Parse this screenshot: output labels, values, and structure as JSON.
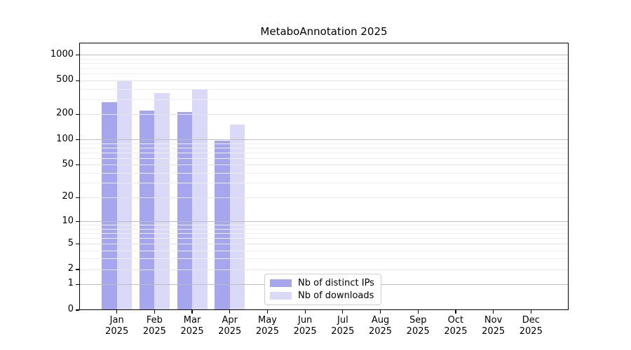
{
  "title": "MetaboAnnotation 2025",
  "chart_data": {
    "type": "bar",
    "title": "MetaboAnnotation 2025",
    "xlabel": "",
    "ylabel": "",
    "y_scale": "log1p",
    "ylim": [
      0,
      1400
    ],
    "grid": true,
    "legend_position": "lower center",
    "categories": [
      {
        "month": "Jan",
        "year": "2025"
      },
      {
        "month": "Feb",
        "year": "2025"
      },
      {
        "month": "Mar",
        "year": "2025"
      },
      {
        "month": "Apr",
        "year": "2025"
      },
      {
        "month": "May",
        "year": "2025"
      },
      {
        "month": "Jun",
        "year": "2025"
      },
      {
        "month": "Jul",
        "year": "2025"
      },
      {
        "month": "Aug",
        "year": "2025"
      },
      {
        "month": "Sep",
        "year": "2025"
      },
      {
        "month": "Oct",
        "year": "2025"
      },
      {
        "month": "Nov",
        "year": "2025"
      },
      {
        "month": "Dec",
        "year": "2025"
      }
    ],
    "series": [
      {
        "name": "Nb of distinct IPs",
        "color": "#a6a6ee",
        "values": [
          280,
          220,
          215,
          98,
          null,
          null,
          null,
          null,
          null,
          null,
          null,
          null
        ]
      },
      {
        "name": "Nb of downloads",
        "color": "#dadaf8",
        "values": [
          500,
          360,
          395,
          150,
          null,
          null,
          null,
          null,
          null,
          null,
          null,
          null
        ]
      }
    ],
    "yticks": [
      0,
      1,
      2,
      5,
      10,
      20,
      50,
      100,
      200,
      500,
      1000
    ],
    "grid_decade_values": [
      1,
      10,
      100,
      1000
    ],
    "grid_mid_values": [
      2,
      5,
      20,
      50,
      200,
      500
    ],
    "grid_minor_values": [
      3,
      4,
      6,
      7,
      8,
      9,
      30,
      40,
      60,
      70,
      80,
      90,
      300,
      400,
      600,
      700,
      800,
      900
    ],
    "grid_decade_color": "#bdbdbd",
    "grid_mid_color": "#e4e4e4",
    "grid_minor_color": "#eeeeee",
    "axis_color": "#000000",
    "text_color": "#000000",
    "background_color": "#ffffff"
  }
}
